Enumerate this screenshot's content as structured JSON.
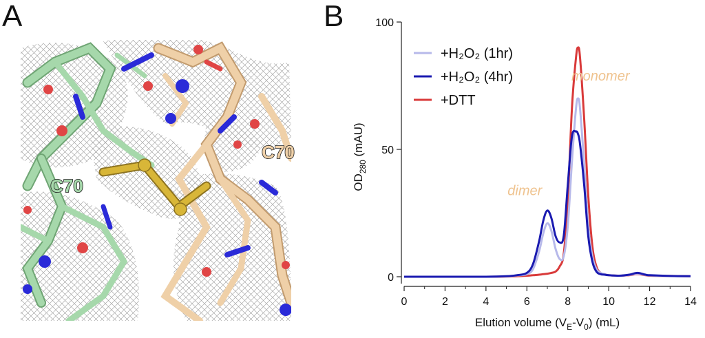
{
  "panels": {
    "a_label": "A",
    "b_label": "B"
  },
  "structure": {
    "residue_left": "C70",
    "residue_right": "C70",
    "colors": {
      "chain_left": "#93c79a",
      "chain_right": "#e2bf93",
      "nitrogen": "#2a2ad8",
      "oxygen": "#d83434",
      "sulfur": "#c8a52a",
      "mesh": "#9a9a9a"
    }
  },
  "chart_data": {
    "type": "line",
    "x": [
      0,
      1,
      2,
      3,
      4,
      5,
      5.5,
      6,
      6.3,
      6.6,
      6.8,
      7.0,
      7.2,
      7.4,
      7.6,
      7.8,
      8.0,
      8.2,
      8.4,
      8.5,
      8.6,
      8.8,
      9.0,
      9.2,
      9.4,
      9.6,
      9.8,
      10.0,
      10.5,
      11.0,
      11.4,
      11.8,
      12.0,
      13.0,
      14.0
    ],
    "series": [
      {
        "name": "+H₂O₂ (1hr)",
        "color": "#b7b9ea",
        "values": [
          0,
          0,
          0,
          0,
          0,
          0.2,
          0.5,
          1,
          3,
          10,
          17,
          21,
          18,
          11,
          7,
          8,
          20,
          45,
          66,
          70,
          66,
          44,
          20,
          8,
          3,
          1.5,
          1,
          0.6,
          0.4,
          0.7,
          1.2,
          0.7,
          0.5,
          0.3,
          0.2
        ]
      },
      {
        "name": "+H₂O₂ (4hr)",
        "color": "#1a1ab0",
        "values": [
          0,
          0,
          0,
          0,
          0,
          0.2,
          0.6,
          1.5,
          5,
          14,
          22,
          26,
          23,
          16,
          13.5,
          16,
          36,
          55,
          57,
          56,
          52,
          36,
          16,
          6,
          2,
          1,
          0.8,
          0.6,
          0.4,
          0.8,
          1.5,
          0.8,
          0.6,
          0.3,
          0.2
        ]
      },
      {
        "name": "+DTT",
        "color": "#d93a3a",
        "values": [
          0,
          0,
          0,
          0,
          0,
          0.1,
          0.2,
          0.4,
          0.6,
          0.8,
          1,
          1.2,
          1.5,
          2,
          4,
          9,
          30,
          66,
          86,
          90,
          86,
          62,
          32,
          12,
          4,
          1.5,
          1,
          0.6,
          0.4,
          0.6,
          1,
          0.6,
          0.4,
          0.3,
          0.2
        ]
      }
    ],
    "xlabel": "Elution volume (V",
    "xlabel_sub1": "E",
    "xlabel_mid": "-V",
    "xlabel_sub2": "0",
    "xlabel_end": ") (mL)",
    "ylabel": "OD",
    "ylabel_sub": "280",
    "ylabel_end": " (mAU)",
    "xlim": [
      0,
      14
    ],
    "ylim": [
      0,
      100
    ],
    "xticks": [
      0,
      2,
      4,
      6,
      8,
      10,
      12,
      14
    ],
    "yticks": [
      0,
      50,
      100
    ],
    "legend_position": "top-left",
    "annotations": [
      {
        "text": "monomer",
        "x": 9.6,
        "y": 77,
        "color": "#efc38f"
      },
      {
        "text": "dimer",
        "x": 5.9,
        "y": 32,
        "color": "#efc38f"
      }
    ]
  }
}
